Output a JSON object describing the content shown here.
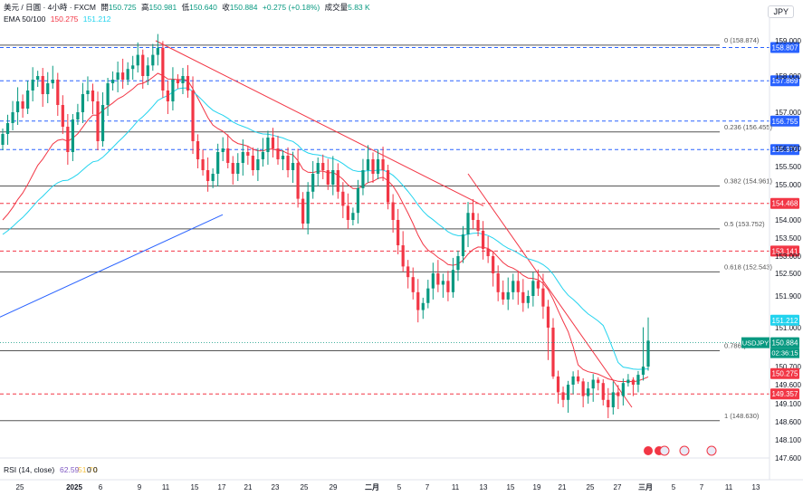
{
  "header": {
    "symbol": "美元 / 日圓 · 4小時 · FXCM",
    "open_label": "開",
    "open": "150.725",
    "high_label": "高",
    "high": "150.981",
    "low_label": "低",
    "low": "150.640",
    "close_label": "收",
    "close": "150.884",
    "change": "+0.275 (+0.18%)",
    "volume_label": "成交量",
    "volume": "5.83 K",
    "ema_label": "EMA 50/100",
    "ema50": "150.275",
    "ema100": "151.212"
  },
  "currency": "JPY",
  "rsi": {
    "label": "RSI (14, close)",
    "value1": "62.59",
    "value2": "51.70",
    "extra1": "0",
    "extra2": "0"
  },
  "colors": {
    "up": "#089981",
    "down": "#f23645",
    "ema50": "#f23645",
    "ema100": "#22d3ee",
    "trend_up": "#2962ff",
    "trend_down": "#f23645",
    "level_blue": "#2962ff",
    "level_red": "#f23645",
    "fib": "#555555",
    "price_label": "#089981"
  },
  "chart_data": {
    "type": "candlestick",
    "x_ticks": [
      "25",
      "2025",
      "6",
      "9",
      "11",
      "15",
      "17",
      "21",
      "23",
      "25",
      "29",
      "二月",
      "5",
      "7",
      "11",
      "13",
      "15",
      "19",
      "21",
      "25",
      "27",
      "三月",
      "5",
      "7",
      "11",
      "13"
    ],
    "y_ticks": [
      159.0,
      158.0,
      157.0,
      156.0,
      155.5,
      155.0,
      154.0,
      153.5,
      153.0,
      152.5,
      151.9,
      151.0,
      150.7,
      149.6,
      149.1,
      148.6,
      148.1,
      147.6
    ],
    "y_tick_labels": [
      "159.000",
      "158.000",
      "157.000",
      "156.000",
      "155.500",
      "155.000",
      "154.000",
      "153.500",
      "153.000",
      "152.500",
      "151.900",
      "151.000",
      "150.700",
      "149.600",
      "149.100",
      "148.600",
      "148.100",
      "147.600"
    ],
    "fib_levels": [
      {
        "label": "0 (158.874)",
        "value": 158.874
      },
      {
        "label": "0.236 (156.455)",
        "value": 156.455
      },
      {
        "label": "0.382 (154.961)",
        "value": 154.961
      },
      {
        "label": "0.5 (153.752)",
        "value": 153.752
      },
      {
        "label": "0.618 (152.543)",
        "value": 152.543
      },
      {
        "label": "0.786 (150.822)",
        "value": 150.822
      },
      {
        "label": "1 (148.630)",
        "value": 148.63
      }
    ],
    "horizontal_levels": [
      {
        "label": "158.807",
        "value": 158.807,
        "color": "#2962ff"
      },
      {
        "label": "157.869",
        "value": 157.869,
        "color": "#2962ff"
      },
      {
        "label": "156.755",
        "value": 156.755,
        "color": "#2962ff"
      },
      {
        "label": "155.970",
        "value": 155.97,
        "color": "#2962ff"
      },
      {
        "label": "154.468",
        "value": 154.468,
        "color": "#f23645"
      },
      {
        "label": "153.141",
        "value": 153.141,
        "color": "#f23645"
      },
      {
        "label": "149.357",
        "value": 149.357,
        "color": "#f23645"
      }
    ],
    "price_labels": [
      {
        "text": "151.212",
        "value": 151.212,
        "color": "#22d3ee"
      },
      {
        "text": "150.884",
        "value": 150.884,
        "color": "#089981",
        "symbol": "USDJPY",
        "timer": "02:36:15"
      },
      {
        "text": "150.275",
        "value": 150.275,
        "color": "#f23645"
      }
    ],
    "series": [
      {
        "name": "USDJPY",
        "kind": "ohlc",
        "close": [
          156.4,
          156.7,
          157.0,
          157.3,
          157.1,
          157.6,
          157.9,
          158.0,
          157.5,
          157.8,
          157.9,
          157.2,
          156.6,
          155.9,
          156.8,
          157.0,
          157.5,
          157.6,
          157.3,
          156.2,
          157.2,
          157.8,
          157.9,
          158.1,
          157.9,
          158.2,
          158.3,
          158.6,
          158.0,
          158.3,
          158.6,
          158.8,
          157.6,
          157.3,
          157.9,
          157.8,
          158.0,
          157.6,
          156.2,
          155.7,
          155.4,
          155.1,
          155.3,
          155.9,
          156.0,
          155.6,
          155.3,
          155.6,
          155.9,
          155.8,
          155.4,
          155.7,
          155.9,
          156.3,
          156.0,
          155.7,
          155.8,
          155.4,
          155.6,
          154.6,
          153.9,
          154.8,
          155.3,
          155.6,
          155.4,
          155.0,
          155.4,
          154.8,
          154.4,
          154.0,
          154.2,
          154.9,
          155.4,
          155.7,
          155.3,
          155.7,
          155.4,
          154.5,
          154.0,
          153.3,
          152.7,
          152.4,
          152.0,
          151.5,
          151.7,
          152.1,
          152.5,
          152.2,
          152.3,
          152.0,
          152.6,
          153.0,
          153.6,
          154.2,
          154.0,
          153.7,
          153.2,
          153.0,
          152.5,
          152.0,
          151.8,
          152.0,
          152.3,
          152.0,
          151.7,
          151.9,
          152.3,
          152.1,
          151.6,
          151.0,
          150.1,
          149.4,
          149.2,
          149.6,
          150.1,
          149.8,
          149.3,
          149.5,
          149.9,
          149.7,
          149.2,
          149.0,
          149.4,
          149.3,
          149.7,
          149.9,
          149.6,
          150.2,
          150.7,
          150.9
        ]
      },
      {
        "name": "EMA 50",
        "kind": "line",
        "color": "#f23645"
      },
      {
        "name": "EMA 100",
        "kind": "line",
        "color": "#22d3ee"
      }
    ],
    "trendlines": [
      {
        "kind": "down",
        "from": {
          "x": "11",
          "y": 159.0
        },
        "to": {
          "x": "13",
          "y": 154.3
        }
      },
      {
        "kind": "down",
        "from": {
          "x": "13",
          "y": 155.0
        },
        "to": {
          "x": "27",
          "y": 149.0
        }
      },
      {
        "kind": "up",
        "from": {
          "x": "25",
          "y": 151.3
        },
        "to": {
          "x": "21",
          "y": 154.1
        }
      }
    ],
    "ylim": [
      147.6,
      159.3
    ],
    "grid": false
  }
}
